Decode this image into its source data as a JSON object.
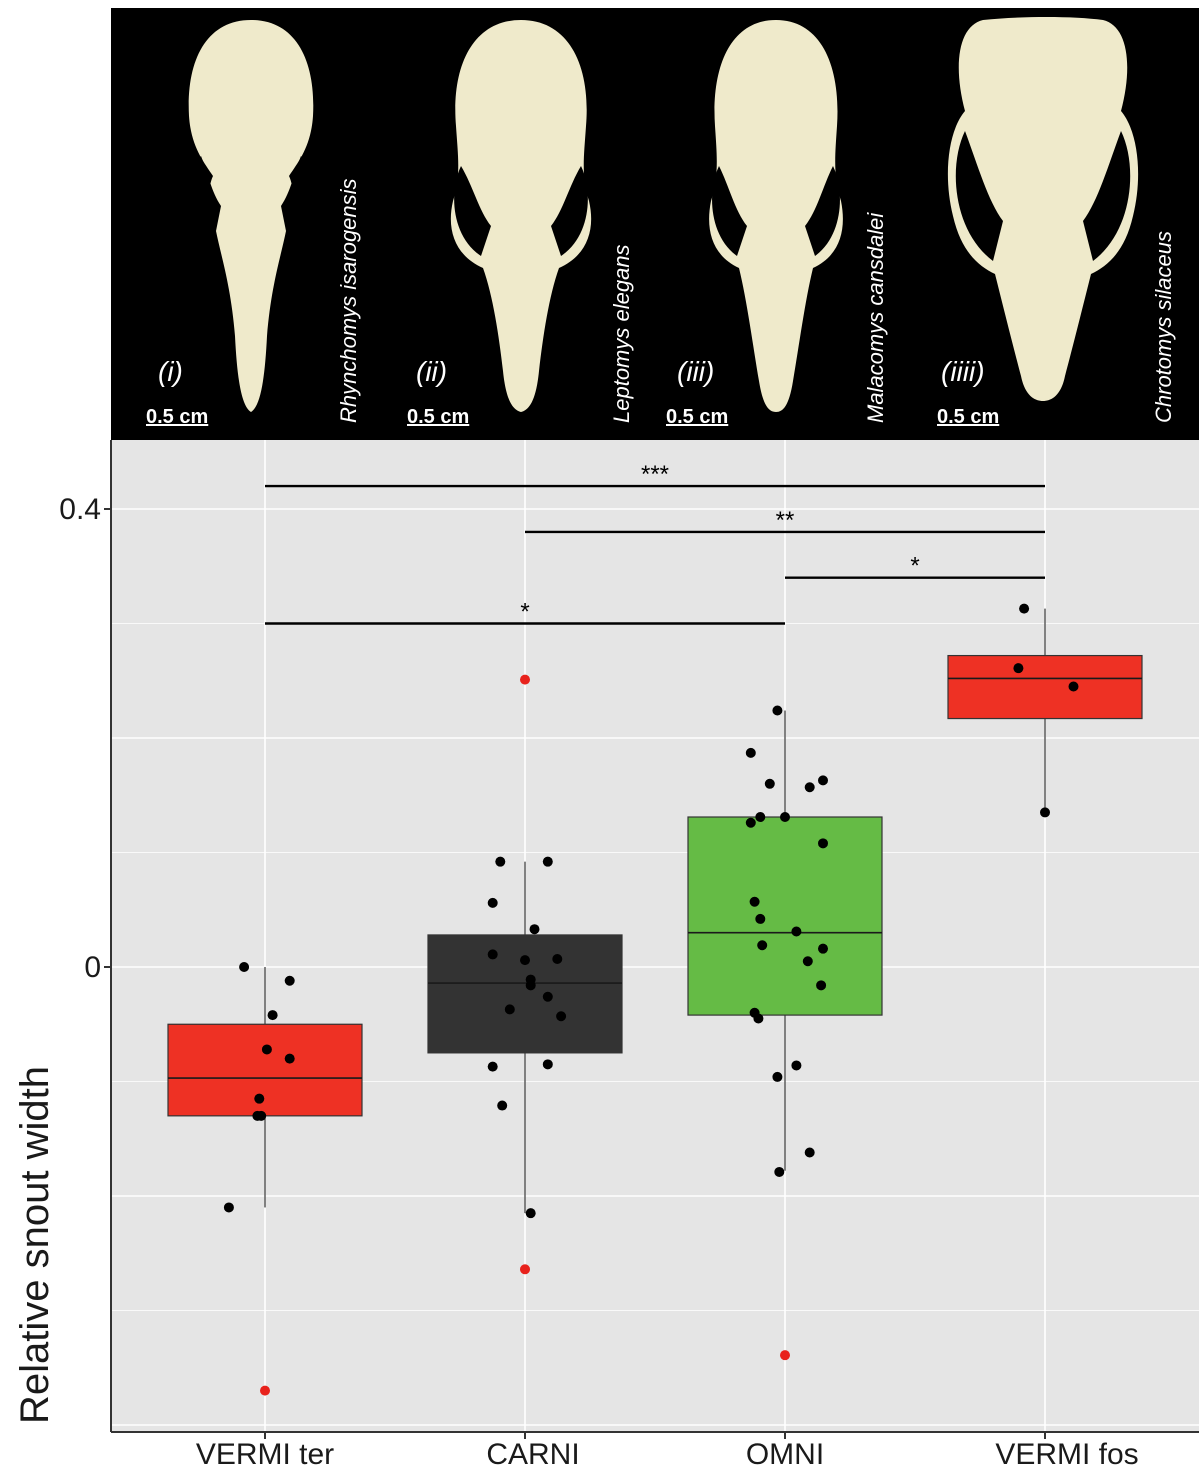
{
  "photos": [
    {
      "roman": "(i)",
      "scale": "0.5 cm",
      "species": "Rhynchomys isarogensis"
    },
    {
      "roman": "(ii)",
      "scale": "0.5 cm",
      "species": "Leptomys elegans"
    },
    {
      "roman": "(iii)",
      "scale": "0.5 cm",
      "species": "Malacomys cansdalei"
    },
    {
      "roman": "(iiii)",
      "scale": "0.5 cm",
      "species": "Chrotomys silaceus"
    }
  ],
  "colors": {
    "panel_bg": "#e5e5e5",
    "grid": "#ffffff",
    "skull": "#efeacb",
    "outlier": "#e8221c",
    "point": "#000000"
  },
  "chart_data": {
    "type": "box",
    "title": "",
    "xlabel": "",
    "ylabel": "Relative snout width",
    "ylim": [
      -0.4,
      0.48
    ],
    "yticks": [
      0,
      0.4
    ],
    "ytick_labels": [
      "0",
      "0.4"
    ],
    "grid": true,
    "categories": [
      "VERMI ter",
      "CARNI",
      "OMNI",
      "VERMI fos"
    ],
    "boxes": [
      {
        "category": "VERMI ter",
        "color": "#ee3124",
        "q1": -0.13,
        "median": -0.097,
        "q3": -0.05,
        "whisker_low": -0.21,
        "whisker_high": 0.0
      },
      {
        "category": "CARNI",
        "color": "#333333",
        "q1": -0.075,
        "median": -0.014,
        "q3": 0.028,
        "whisker_low": -0.215,
        "whisker_high": 0.092
      },
      {
        "category": "OMNI",
        "color": "#65bb45",
        "q1": -0.042,
        "median": 0.03,
        "q3": 0.131,
        "whisker_low": -0.178,
        "whisker_high": 0.224
      },
      {
        "category": "VERMI fos",
        "color": "#ee3124",
        "q1": 0.217,
        "median": 0.252,
        "q3": 0.272,
        "whisker_low": 0.135,
        "whisker_high": 0.313
      }
    ],
    "points": [
      {
        "category": "VERMI ter",
        "x_offset": -0.11,
        "y": 0.0
      },
      {
        "category": "VERMI ter",
        "x_offset": 0.13,
        "y": -0.012
      },
      {
        "category": "VERMI ter",
        "x_offset": 0.04,
        "y": -0.042
      },
      {
        "category": "VERMI ter",
        "x_offset": 0.01,
        "y": -0.072
      },
      {
        "category": "VERMI ter",
        "x_offset": 0.13,
        "y": -0.08
      },
      {
        "category": "VERMI ter",
        "x_offset": -0.03,
        "y": -0.115
      },
      {
        "category": "VERMI ter",
        "x_offset": -0.04,
        "y": -0.13
      },
      {
        "category": "VERMI ter",
        "x_offset": -0.02,
        "y": -0.13
      },
      {
        "category": "VERMI ter",
        "x_offset": -0.19,
        "y": -0.21
      },
      {
        "category": "CARNI",
        "x_offset": -0.13,
        "y": 0.092
      },
      {
        "category": "CARNI",
        "x_offset": 0.12,
        "y": 0.092
      },
      {
        "category": "CARNI",
        "x_offset": -0.17,
        "y": 0.056
      },
      {
        "category": "CARNI",
        "x_offset": 0.05,
        "y": 0.033
      },
      {
        "category": "CARNI",
        "x_offset": -0.17,
        "y": 0.011
      },
      {
        "category": "CARNI",
        "x_offset": 0.0,
        "y": 0.006
      },
      {
        "category": "CARNI",
        "x_offset": 0.17,
        "y": 0.007
      },
      {
        "category": "CARNI",
        "x_offset": 0.03,
        "y": -0.011
      },
      {
        "category": "CARNI",
        "x_offset": 0.03,
        "y": -0.016
      },
      {
        "category": "CARNI",
        "x_offset": 0.12,
        "y": -0.026
      },
      {
        "category": "CARNI",
        "x_offset": -0.08,
        "y": -0.037
      },
      {
        "category": "CARNI",
        "x_offset": 0.19,
        "y": -0.043
      },
      {
        "category": "CARNI",
        "x_offset": -0.17,
        "y": -0.087
      },
      {
        "category": "CARNI",
        "x_offset": 0.12,
        "y": -0.085
      },
      {
        "category": "CARNI",
        "x_offset": -0.12,
        "y": -0.121
      },
      {
        "category": "CARNI",
        "x_offset": 0.03,
        "y": -0.215
      },
      {
        "category": "OMNI",
        "x_offset": -0.04,
        "y": 0.224
      },
      {
        "category": "OMNI",
        "x_offset": -0.18,
        "y": 0.187
      },
      {
        "category": "OMNI",
        "x_offset": 0.2,
        "y": 0.163
      },
      {
        "category": "OMNI",
        "x_offset": -0.08,
        "y": 0.16
      },
      {
        "category": "OMNI",
        "x_offset": 0.13,
        "y": 0.157
      },
      {
        "category": "OMNI",
        "x_offset": -0.13,
        "y": 0.131
      },
      {
        "category": "OMNI",
        "x_offset": -0.18,
        "y": 0.126
      },
      {
        "category": "OMNI",
        "x_offset": 0.0,
        "y": 0.131
      },
      {
        "category": "OMNI",
        "x_offset": 0.2,
        "y": 0.108
      },
      {
        "category": "OMNI",
        "x_offset": -0.16,
        "y": 0.057
      },
      {
        "category": "OMNI",
        "x_offset": -0.13,
        "y": 0.042
      },
      {
        "category": "OMNI",
        "x_offset": -0.12,
        "y": 0.019
      },
      {
        "category": "OMNI",
        "x_offset": 0.06,
        "y": 0.031
      },
      {
        "category": "OMNI",
        "x_offset": 0.2,
        "y": 0.016
      },
      {
        "category": "OMNI",
        "x_offset": 0.12,
        "y": 0.005
      },
      {
        "category": "OMNI",
        "x_offset": 0.19,
        "y": -0.016
      },
      {
        "category": "OMNI",
        "x_offset": -0.16,
        "y": -0.04
      },
      {
        "category": "OMNI",
        "x_offset": -0.14,
        "y": -0.045
      },
      {
        "category": "OMNI",
        "x_offset": 0.06,
        "y": -0.086
      },
      {
        "category": "OMNI",
        "x_offset": -0.04,
        "y": -0.096
      },
      {
        "category": "OMNI",
        "x_offset": 0.13,
        "y": -0.162
      },
      {
        "category": "OMNI",
        "x_offset": -0.03,
        "y": -0.179
      },
      {
        "category": "VERMI fos",
        "x_offset": -0.11,
        "y": 0.313
      },
      {
        "category": "VERMI fos",
        "x_offset": -0.14,
        "y": 0.261
      },
      {
        "category": "VERMI fos",
        "x_offset": 0.15,
        "y": 0.245
      },
      {
        "category": "VERMI fos",
        "x_offset": 0.0,
        "y": 0.135
      }
    ],
    "outliers": [
      {
        "category": "VERMI ter",
        "y": -0.37
      },
      {
        "category": "CARNI",
        "y": 0.251
      },
      {
        "category": "CARNI",
        "y": -0.264
      },
      {
        "category": "OMNI",
        "y": -0.339
      }
    ],
    "significance": [
      {
        "from": "VERMI ter",
        "to": "VERMI fos",
        "y": 0.42,
        "label": "***"
      },
      {
        "from": "CARNI",
        "to": "VERMI fos",
        "y": 0.38,
        "label": "**"
      },
      {
        "from": "OMNI",
        "to": "VERMI fos",
        "y": 0.34,
        "label": "*"
      },
      {
        "from": "VERMI ter",
        "to": "OMNI",
        "y": 0.3,
        "label": "*"
      }
    ]
  }
}
